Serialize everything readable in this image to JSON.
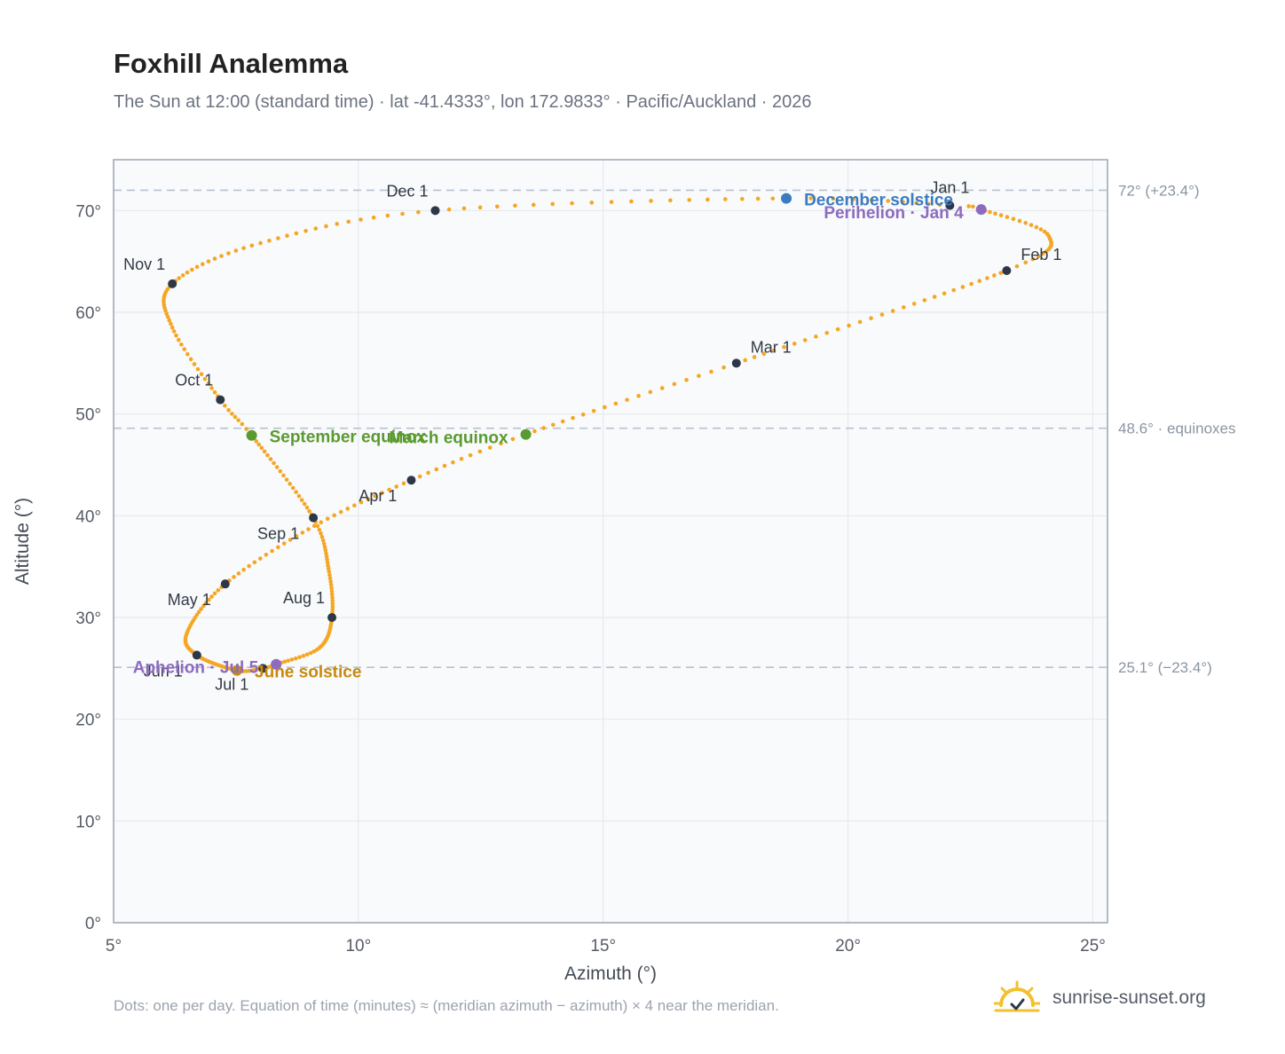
{
  "header": {
    "title": "Foxhill Analemma",
    "subtitle": "The Sun at 12:00 (standard time) · lat -41.4333°, lon 172.9833° · Pacific/Auckland · 2026"
  },
  "footer": {
    "note": "Dots: one per day. Equation of time (minutes) ≈ (meridian azimuth − azimuth) × 4 near the meridian.",
    "brand": "sunrise-sunset.org"
  },
  "colors": {
    "curve": "#f5a623",
    "month_marker": "#2d3748",
    "equinox": "#5a9a2f",
    "december_solstice": "#3b7bbf",
    "june_solstice": "#c98a0c",
    "apsis": "#8e6bbf",
    "reference_line": "#b8c2cf",
    "grid": "#e5e9ef",
    "plot_bg": "#f8fafc",
    "frame": "#9aa6b2"
  },
  "chart_data": {
    "type": "scatter",
    "xlabel": "Azimuth (°)",
    "ylabel": "Altitude (°)",
    "xlim": [
      5,
      25.3
    ],
    "ylim": [
      0,
      75
    ],
    "xticks": [
      5,
      10,
      15,
      20,
      25
    ],
    "yticks": [
      0,
      10,
      20,
      30,
      40,
      50,
      60,
      70
    ],
    "xtick_labels": [
      "5°",
      "10°",
      "15°",
      "20°",
      "25°"
    ],
    "ytick_labels": [
      "0°",
      "10°",
      "20°",
      "30°",
      "40°",
      "50°",
      "60°",
      "70°"
    ],
    "grid": true,
    "curve_anchors": [
      {
        "day": 1,
        "az": 22.08,
        "alt": 70.5
      },
      {
        "day": 4,
        "az": 22.72,
        "alt": 70.1
      },
      {
        "day": 18,
        "az": 24.1,
        "alt": 67.5
      },
      {
        "day": 32,
        "az": 23.24,
        "alt": 64.1
      },
      {
        "day": 60,
        "az": 17.72,
        "alt": 55.0
      },
      {
        "day": 79,
        "az": 13.42,
        "alt": 48.0
      },
      {
        "day": 91,
        "az": 11.08,
        "alt": 43.5
      },
      {
        "day": 105,
        "az": 9.1,
        "alt": 39.0
      },
      {
        "day": 121,
        "az": 7.28,
        "alt": 33.3
      },
      {
        "day": 138,
        "az": 6.5,
        "alt": 28.5
      },
      {
        "day": 152,
        "az": 6.7,
        "alt": 26.3
      },
      {
        "day": 172,
        "az": 7.52,
        "alt": 24.8
      },
      {
        "day": 182,
        "az": 8.05,
        "alt": 25.0
      },
      {
        "day": 186,
        "az": 8.32,
        "alt": 25.4
      },
      {
        "day": 199,
        "az": 9.2,
        "alt": 27.0
      },
      {
        "day": 213,
        "az": 9.46,
        "alt": 30.0
      },
      {
        "day": 228,
        "az": 9.4,
        "alt": 34.5
      },
      {
        "day": 244,
        "az": 9.08,
        "alt": 39.8
      },
      {
        "day": 266,
        "az": 7.82,
        "alt": 47.9
      },
      {
        "day": 274,
        "az": 7.18,
        "alt": 51.4
      },
      {
        "day": 290,
        "az": 6.2,
        "alt": 58.5
      },
      {
        "day": 305,
        "az": 6.2,
        "alt": 62.8
      },
      {
        "day": 320,
        "az": 8.0,
        "alt": 66.8
      },
      {
        "day": 335,
        "az": 11.57,
        "alt": 70.0
      },
      {
        "day": 355,
        "az": 18.74,
        "alt": 71.2
      },
      {
        "day": 365,
        "az": 22.08,
        "alt": 70.5
      }
    ],
    "month_markers": [
      {
        "label": "Jan 1",
        "az": 22.08,
        "alt": 70.5,
        "label_pos": "above"
      },
      {
        "label": "Feb 1",
        "az": 23.24,
        "alt": 64.1,
        "label_pos": "above-right"
      },
      {
        "label": "Mar 1",
        "az": 17.72,
        "alt": 55.0,
        "label_pos": "above-right"
      },
      {
        "label": "Apr 1",
        "az": 11.08,
        "alt": 43.5,
        "label_pos": "below-left"
      },
      {
        "label": "May 1",
        "az": 7.28,
        "alt": 33.3,
        "label_pos": "below-left"
      },
      {
        "label": "Jun 1",
        "az": 6.7,
        "alt": 26.3,
        "label_pos": "below-left"
      },
      {
        "label": "Jul 1",
        "az": 8.05,
        "alt": 25.0,
        "label_pos": "below-left"
      },
      {
        "label": "Aug 1",
        "az": 9.46,
        "alt": 30.0,
        "label_pos": "above-left"
      },
      {
        "label": "Sep 1",
        "az": 9.08,
        "alt": 39.8,
        "label_pos": "below-left"
      },
      {
        "label": "Oct 1",
        "az": 7.18,
        "alt": 51.4,
        "label_pos": "above-left"
      },
      {
        "label": "Nov 1",
        "az": 6.2,
        "alt": 62.8,
        "label_pos": "above-left"
      },
      {
        "label": "Dec 1",
        "az": 11.57,
        "alt": 70.0,
        "label_pos": "above-left"
      }
    ],
    "events": [
      {
        "label": "December solstice",
        "az": 18.74,
        "alt": 71.2,
        "kind": "december_solstice",
        "label_pos": "right"
      },
      {
        "label": "Perihelion · Jan 4",
        "az": 22.72,
        "alt": 70.1,
        "kind": "apsis",
        "label_pos": "left"
      },
      {
        "label": "March equinox",
        "az": 13.42,
        "alt": 48.0,
        "kind": "equinox",
        "label_pos": "left"
      },
      {
        "label": "September equinox",
        "az": 7.82,
        "alt": 47.9,
        "kind": "equinox",
        "label_pos": "right"
      },
      {
        "label": "June solstice",
        "az": 7.52,
        "alt": 24.8,
        "kind": "june_solstice",
        "label_pos": "right"
      },
      {
        "label": "Aphelion · Jul 5",
        "az": 8.32,
        "alt": 25.4,
        "kind": "apsis",
        "label_pos": "left"
      }
    ],
    "reference_lines": [
      {
        "alt": 72.0,
        "label": "72° (+23.4°)"
      },
      {
        "alt": 48.6,
        "label": "48.6° · equinoxes"
      },
      {
        "alt": 25.1,
        "label": "25.1° (−23.4°)"
      }
    ]
  }
}
